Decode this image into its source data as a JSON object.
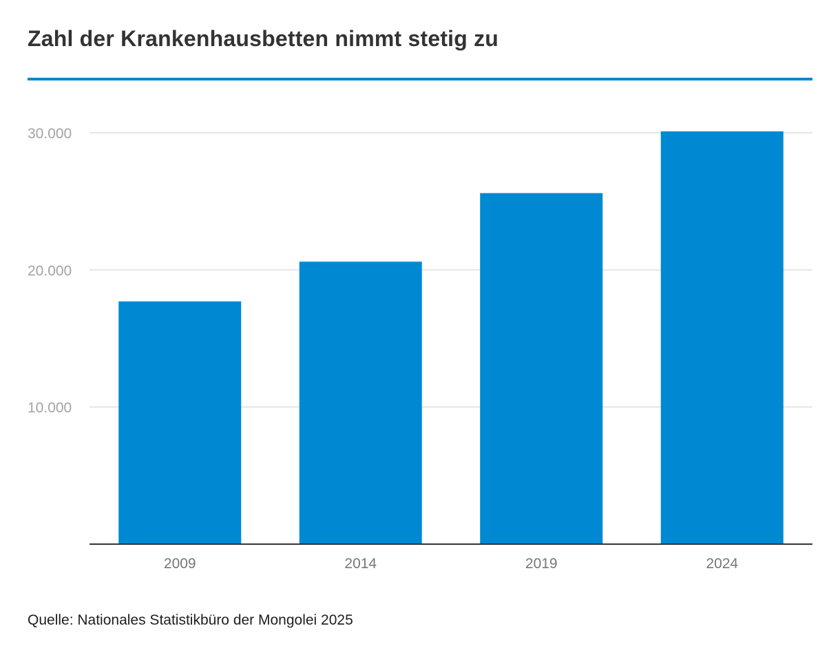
{
  "title": "Zahl der Krankenhausbetten nimmt stetig zu",
  "source": "Quelle: Nationales Statistikbüro der Mongolei 2025",
  "colors": {
    "bar": "#0089d3",
    "accent_rule": "#0a87cc",
    "grid": "#dddddd",
    "axis": "#333333"
  },
  "chart_data": {
    "type": "bar",
    "title": "Zahl der Krankenhausbetten nimmt stetig zu",
    "categories": [
      "2009",
      "2014",
      "2019",
      "2024"
    ],
    "values": [
      17700,
      20600,
      25600,
      30100
    ],
    "ylim": [
      0,
      30000
    ],
    "yticks": [
      10000,
      20000,
      30000
    ],
    "ytick_labels": [
      "10.000",
      "20.000",
      "30.000"
    ],
    "xlabel": "",
    "ylabel": "",
    "grid": true,
    "legend": "none"
  }
}
